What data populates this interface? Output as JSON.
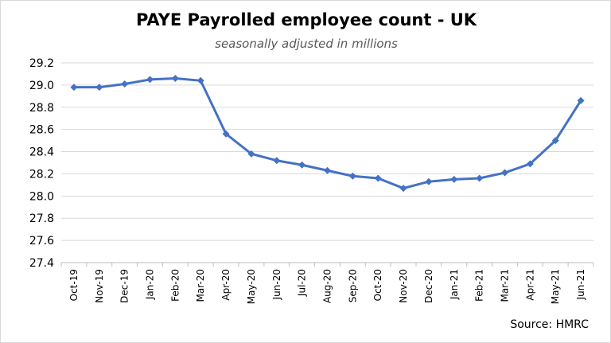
{
  "chart_data": {
    "type": "line",
    "title": "PAYE Payrolled employee count - UK",
    "subtitle": "seasonally adjusted in millions",
    "source": "Source: HMRC",
    "xlabel": "",
    "ylabel": "",
    "ylim": [
      27.4,
      29.2
    ],
    "yticks": [
      "27.4",
      "27.6",
      "27.8",
      "28.0",
      "28.2",
      "28.4",
      "28.6",
      "28.8",
      "29.0",
      "29.2"
    ],
    "grid": true,
    "legend": "none",
    "line_color": "#4472C4",
    "categories": [
      "Oct-19",
      "Nov-19",
      "Dec-19",
      "Jan-20",
      "Feb-20",
      "Mar-20",
      "Apr-20",
      "May-20",
      "Jun-20",
      "Jul-20",
      "Aug-20",
      "Sep-20",
      "Oct-20",
      "Nov-20",
      "Dec-20",
      "Jan-21",
      "Feb-21",
      "Mar-21",
      "Apr-21",
      "May-21",
      "Jun-21"
    ],
    "series": [
      {
        "values": [
          28.98,
          28.98,
          29.01,
          29.05,
          29.06,
          29.04,
          28.56,
          28.38,
          28.32,
          28.28,
          28.23,
          28.18,
          28.16,
          28.07,
          28.13,
          28.15,
          28.16,
          28.21,
          28.29,
          28.5,
          28.86
        ]
      }
    ]
  }
}
